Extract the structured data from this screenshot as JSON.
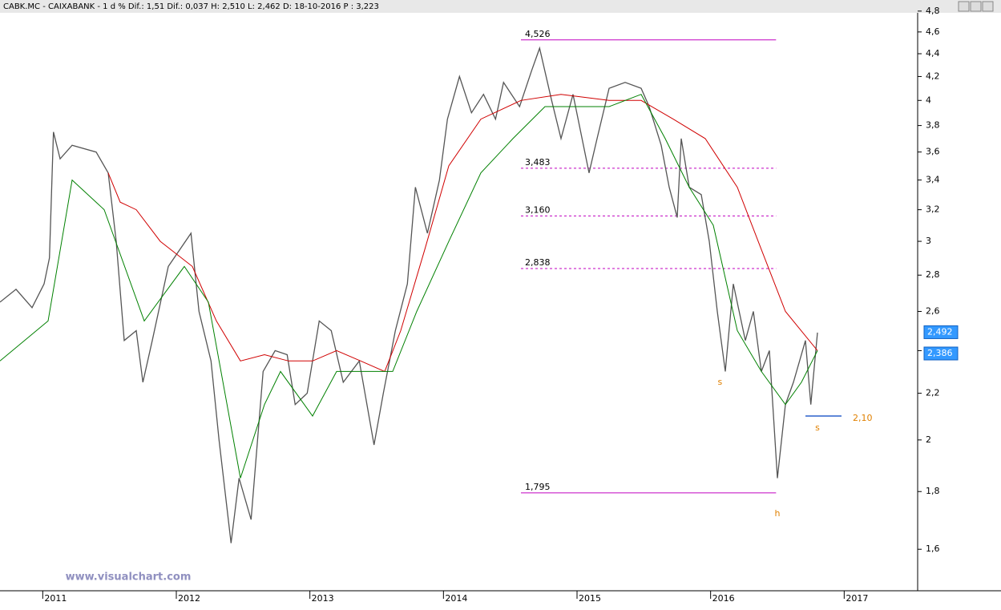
{
  "chart_data": {
    "type": "line",
    "header": "CABK.MC - CAIXABANK -  1 d % Dif.: 1,51 Dif.: 0,037 H: 2,510 L: 2,462 D: 18-10-2016 P : 3,223",
    "watermark": "www.visualchart.com",
    "log": true,
    "xlim": [
      2010.68,
      2017.55
    ],
    "xticks": [
      2011,
      2012,
      2013,
      2014,
      2015,
      2016,
      2017
    ],
    "ylim": [
      1.47,
      4.91
    ],
    "yticks": [
      {
        "value": 1.6,
        "label": "1,6"
      },
      {
        "value": 1.8,
        "label": "1,8"
      },
      2,
      {
        "value": 2.2,
        "label": "2,2"
      },
      {
        "value": 2.4,
        "label": "2,4"
      },
      {
        "value": 2.6,
        "label": "2,6"
      },
      {
        "value": 2.8,
        "label": "2,8"
      },
      3,
      {
        "value": 3.2,
        "label": "3,2"
      },
      {
        "value": 3.4,
        "label": "3,4"
      },
      {
        "value": 3.6,
        "label": "3,6"
      },
      {
        "value": 3.8,
        "label": "3,8"
      },
      4,
      {
        "value": 4.2,
        "label": "4,2"
      },
      {
        "value": 4.4,
        "label": "4,4"
      },
      {
        "value": 4.6,
        "label": "4,6"
      },
      {
        "value": 4.8,
        "label": "4,8"
      }
    ],
    "series": [
      {
        "color": "#555555",
        "width": 1.3,
        "x": [
          2010.68,
          2010.8,
          2010.92,
          2011.01,
          2011.05,
          2011.08,
          2011.13,
          2011.22,
          2011.4,
          2011.49,
          2011.55,
          2011.61,
          2011.7,
          2011.75,
          2011.82,
          2011.94,
          2012.11,
          2012.17,
          2012.26,
          2012.32,
          2012.41,
          2012.47,
          2012.56,
          2012.65,
          2012.74,
          2012.83,
          2012.89,
          2012.98,
          2013.07,
          2013.16,
          2013.25,
          2013.37,
          2013.48,
          2013.55,
          2013.64,
          2013.73,
          2013.79,
          2013.88,
          2013.97,
          2014.03,
          2014.12,
          2014.21,
          2014.3,
          2014.39,
          2014.45,
          2014.57,
          2014.66,
          2014.72,
          2014.81,
          2014.88,
          2014.97,
          2015.09,
          2015.15,
          2015.24,
          2015.36,
          2015.48,
          2015.54,
          2015.63,
          2015.69,
          2015.75,
          2015.78,
          2015.84,
          2015.93,
          2015.99,
          2016.05,
          2016.11,
          2016.17,
          2016.26,
          2016.32,
          2016.38,
          2016.44,
          2016.5,
          2016.56,
          2016.62,
          2016.71,
          2016.75,
          2016.8
        ],
        "values": [
          2.65,
          2.72,
          2.62,
          2.75,
          2.9,
          3.75,
          3.55,
          3.65,
          3.6,
          3.45,
          3.0,
          2.45,
          2.5,
          2.25,
          2.45,
          2.85,
          3.05,
          2.6,
          2.35,
          2.0,
          1.62,
          1.85,
          1.7,
          2.3,
          2.4,
          2.38,
          2.15,
          2.2,
          2.55,
          2.5,
          2.25,
          2.35,
          1.98,
          2.2,
          2.5,
          2.75,
          3.35,
          3.05,
          3.4,
          3.85,
          4.2,
          3.9,
          4.05,
          3.85,
          4.15,
          3.95,
          4.25,
          4.45,
          4.0,
          3.7,
          4.05,
          3.45,
          3.7,
          4.1,
          4.15,
          4.1,
          3.95,
          3.65,
          3.35,
          3.15,
          3.7,
          3.35,
          3.3,
          3.0,
          2.6,
          2.3,
          2.75,
          2.45,
          2.6,
          2.3,
          2.4,
          1.85,
          2.15,
          2.25,
          2.45,
          2.15,
          2.49
        ]
      },
      {
        "color": "#d00000",
        "width": 1,
        "x": [
          2011.49,
          2011.58,
          2011.7,
          2011.88,
          2012.12,
          2012.3,
          2012.48,
          2012.66,
          2012.84,
          2013.02,
          2013.2,
          2013.38,
          2013.56,
          2013.68,
          2013.86,
          2014.04,
          2014.28,
          2014.58,
          2014.88,
          2015.24,
          2015.48,
          2015.72,
          2015.96,
          2016.2,
          2016.38,
          2016.56,
          2016.8
        ],
        "values": [
          3.45,
          3.25,
          3.2,
          3.0,
          2.85,
          2.55,
          2.35,
          2.38,
          2.35,
          2.35,
          2.4,
          2.35,
          2.3,
          2.5,
          2.95,
          3.5,
          3.85,
          4.0,
          4.05,
          4.0,
          4.0,
          3.85,
          3.7,
          3.35,
          2.95,
          2.6,
          2.4
        ]
      },
      {
        "color": "#008000",
        "width": 1,
        "x": [
          2010.68,
          2011.04,
          2011.22,
          2011.46,
          2011.76,
          2012.06,
          2012.24,
          2012.48,
          2012.66,
          2012.78,
          2013.02,
          2013.2,
          2013.44,
          2013.62,
          2013.8,
          2014.04,
          2014.28,
          2014.52,
          2014.76,
          2015.0,
          2015.24,
          2015.48,
          2015.66,
          2015.84,
          2016.02,
          2016.2,
          2016.38,
          2016.56,
          2016.68,
          2016.8
        ],
        "values": [
          2.35,
          2.55,
          3.4,
          3.2,
          2.55,
          2.85,
          2.65,
          1.85,
          2.15,
          2.3,
          2.1,
          2.3,
          2.3,
          2.3,
          2.6,
          3.0,
          3.45,
          3.7,
          3.95,
          3.95,
          3.95,
          4.05,
          3.7,
          3.35,
          3.1,
          2.5,
          2.3,
          2.15,
          2.25,
          2.4
        ]
      }
    ],
    "levels": {
      "color": "#c000c0",
      "from": 2014.58,
      "to": 2016.49,
      "values": [
        4.526,
        3.483,
        3.16,
        2.838,
        1.795
      ],
      "value_labels": [
        "4,526",
        "3,483",
        "3,160",
        "2,838",
        "1,795"
      ],
      "dashed": [
        false,
        true,
        true,
        true,
        false
      ]
    },
    "support": {
      "value": 2.1,
      "label": "2,10",
      "from": 2016.71,
      "to": 2016.98,
      "color": "#0040c0",
      "label_color": "#e08000"
    },
    "annotations": [
      {
        "text": "s",
        "x": 2016.07,
        "y": 2.25
      },
      {
        "text": "s",
        "x": 2016.8,
        "y": 2.05
      },
      {
        "text": "h",
        "x": 2016.5,
        "y": 1.72
      }
    ],
    "price_labels": [
      {
        "value": 2.492,
        "label": "2,492"
      },
      {
        "value": 2.386,
        "label": "2,386"
      }
    ]
  }
}
